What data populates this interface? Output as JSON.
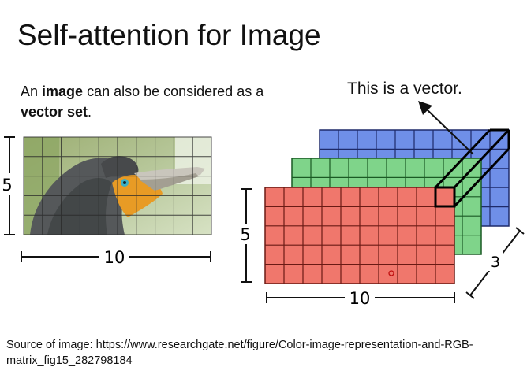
{
  "slide": {
    "title": "Self-attention for Image",
    "description": {
      "part1": "An ",
      "bold1": "image",
      "part2": " can also be considered as a ",
      "bold2": "vector set",
      "part3": "."
    },
    "vector_label": "This is a vector.",
    "bird_figure": {
      "width_label": "10",
      "height_label": "5"
    },
    "rgb_figure": {
      "width_label": "10",
      "height_label": "5",
      "depth_label": "3",
      "colors": {
        "red": "#f0776c",
        "green": "#7fd48a",
        "blue": "#6f8fe8"
      }
    },
    "source": "Source of image: https://www.researchgate.net/figure/Color-image-representation-and-RGB-matrix_fig15_282798184"
  }
}
